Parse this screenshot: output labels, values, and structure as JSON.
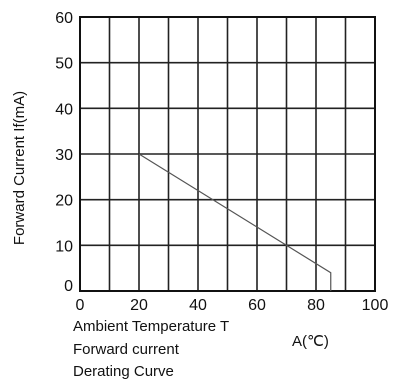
{
  "chart_data": {
    "type": "line",
    "ylabel": "Forward Current If(mA)",
    "xlabel_main": "Ambient Temperature T",
    "xlabel_unit": "A(℃)",
    "caption_lines": [
      "Forward current",
      "Derating Curve"
    ],
    "xlim": [
      0,
      100
    ],
    "ylim": [
      0,
      60
    ],
    "x_ticks": [
      "0",
      "20",
      "40",
      "60",
      "80",
      "100"
    ],
    "y_ticks": [
      "0",
      "10",
      "20",
      "30",
      "40",
      "50",
      "60"
    ],
    "grid": true,
    "series": [
      {
        "x": [
          20,
          85,
          85
        ],
        "y": [
          30,
          4,
          0
        ]
      }
    ]
  }
}
